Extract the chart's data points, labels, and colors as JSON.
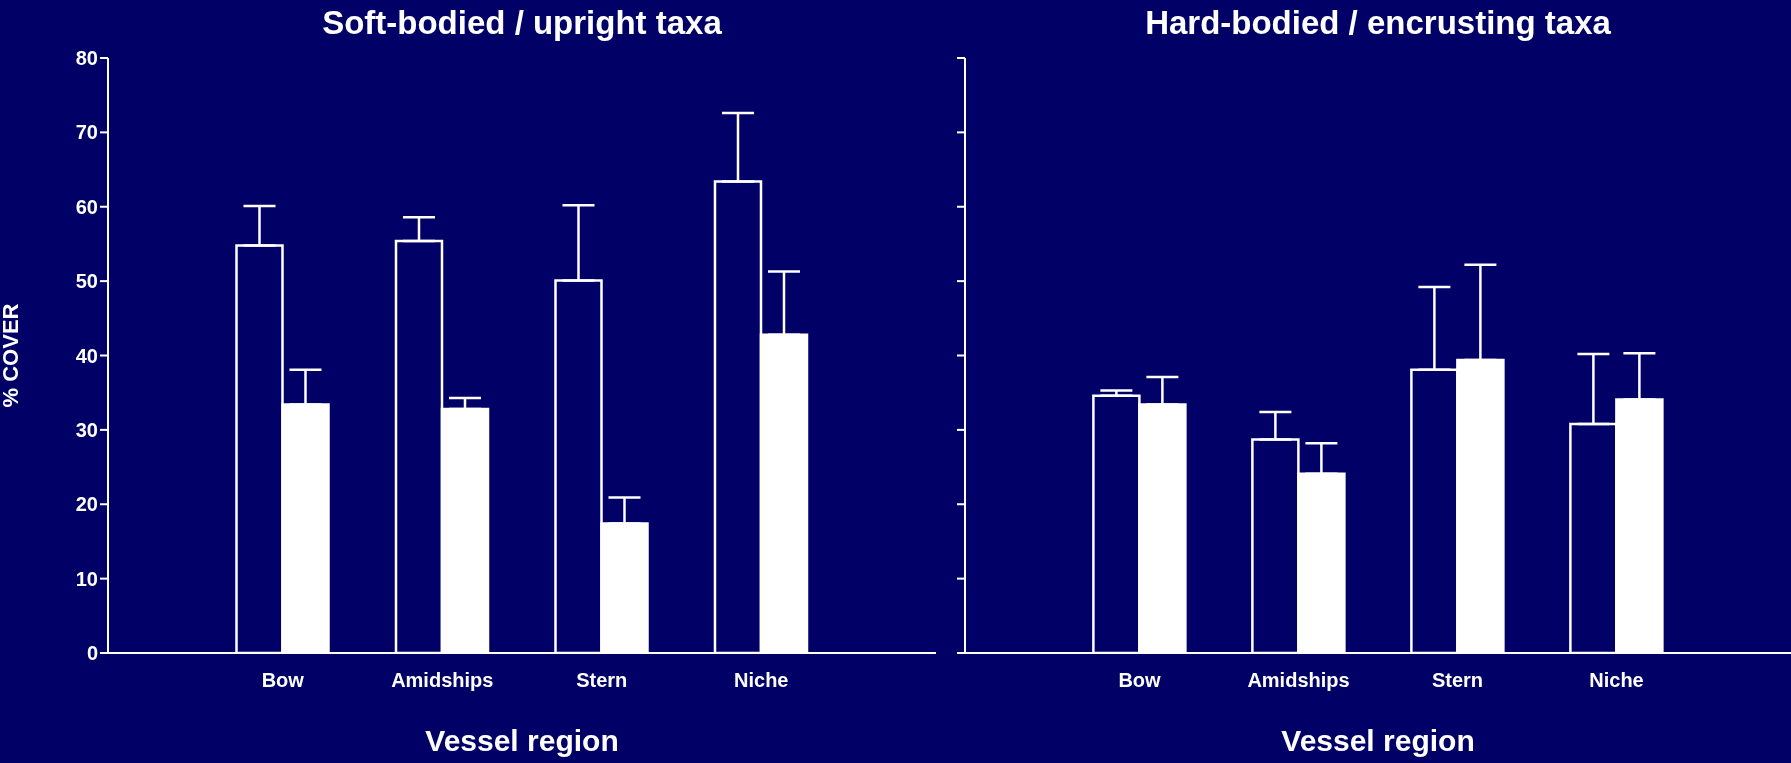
{
  "chart_data": [
    {
      "type": "bar",
      "title": "Soft-bodied / upright taxa",
      "xlabel": "Vessel region",
      "ylabel": "% COVER",
      "categories": [
        "Bow",
        "Amidships",
        "Stern",
        "Niche"
      ],
      "ylim": [
        0,
        80
      ],
      "yticks": [
        0,
        10,
        20,
        30,
        40,
        50,
        60,
        70,
        80
      ],
      "grid": false,
      "legend": false,
      "series": [
        {
          "color": "#000066",
          "values": [
            54.8,
            55.4,
            50.1,
            63.4
          ],
          "errors": [
            [
              54.8,
              60.1
            ],
            [
              55.4,
              58.6
            ],
            [
              50.1,
              60.2
            ],
            [
              63.4,
              72.6
            ]
          ]
        },
        {
          "color": "#ffffff",
          "values": [
            33.4,
            32.8,
            17.4,
            42.8
          ],
          "errors": [
            [
              33.4,
              38.1
            ],
            [
              32.8,
              34.3
            ],
            [
              17.4,
              20.9
            ],
            [
              42.8,
              51.3
            ]
          ]
        }
      ]
    },
    {
      "type": "bar",
      "title": "Hard-bodied / encrusting taxa",
      "xlabel": "Vessel region",
      "categories": [
        "Bow",
        "Amidships",
        "Stern",
        "Niche"
      ],
      "ylim": [
        0,
        80
      ],
      "yticks": [
        0,
        10,
        20,
        30,
        40,
        50,
        60,
        70,
        80
      ],
      "tick_labels": "x",
      "grid": false,
      "legend": false,
      "series": [
        {
          "color": "#000066",
          "values": [
            34.6,
            28.7,
            38.1,
            30.8
          ],
          "errors": [
            [
              34.6,
              35.3
            ],
            [
              28.7,
              32.4
            ],
            [
              38.1,
              49.2
            ],
            [
              30.8,
              40.2
            ]
          ]
        },
        {
          "color": "#ffffff",
          "values": [
            33.4,
            24.1,
            39.4,
            34.1
          ],
          "errors": [
            [
              33.4,
              37.1
            ],
            [
              24.1,
              28.2
            ],
            [
              39.4,
              52.2
            ],
            [
              34.1,
              40.3
            ]
          ]
        }
      ]
    }
  ]
}
